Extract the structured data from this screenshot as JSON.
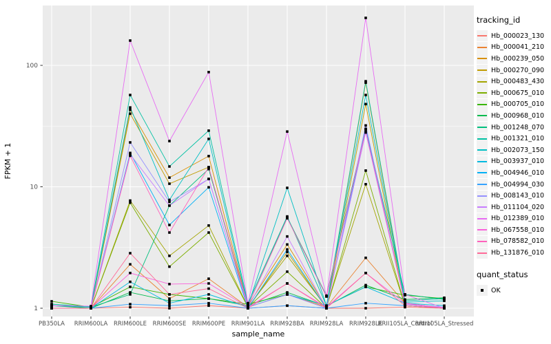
{
  "figure": {
    "xlabel": "sample_name",
    "ylabel": "FPKM + 1"
  },
  "legend": {
    "tracking_title": "tracking_id",
    "quant_title": "quant_status",
    "quant_items": [
      {
        "label": "OK",
        "marker": "black-square",
        "color": "#000000"
      }
    ]
  },
  "chart_data": {
    "type": "line",
    "title": "",
    "xlabel": "sample_name",
    "ylabel": "FPKM + 1",
    "y_scale": "log10",
    "y_ticks": [
      "1",
      "10",
      "100"
    ],
    "ylim": [
      0.86,
      300
    ],
    "grid": true,
    "legend_position": "right",
    "panel_bg": "#EBEBEB",
    "grid_color": "#FFFFFF",
    "tick_label_color": "#4D4D4D",
    "point_color": "#000000",
    "categories": [
      "PB350LA",
      "RRIM600LA",
      "RRIM600LE",
      "RRIM600SE",
      "RRIM600PE",
      "RRIM901LA",
      "RRIM928BA",
      "RRIM928LA",
      "RRIM928LE",
      "RRII105LA_Control",
      "RRII105LA_Stressed"
    ],
    "series": [
      {
        "name": "Hb_000023_130",
        "color": "#F8766D",
        "values": [
          1,
          1,
          1.02,
          1,
          1.05,
          1,
          1.05,
          1,
          1,
          1.02,
          1
        ]
      },
      {
        "name": "Hb_000041_210",
        "color": "#EA8331",
        "values": [
          1,
          1,
          2.3,
          1.2,
          1.75,
          1.02,
          1.3,
          1.02,
          2.6,
          1.1,
          1
        ]
      },
      {
        "name": "Hb_000239_050",
        "color": "#D89000",
        "values": [
          1,
          1,
          43,
          11.9,
          17.9,
          1.05,
          3.35,
          1.02,
          72,
          1.1,
          1
        ]
      },
      {
        "name": "Hb_000270_090",
        "color": "#C09B00",
        "values": [
          1,
          1,
          40,
          10.6,
          14.5,
          1,
          2.9,
          1,
          48,
          1.05,
          1
        ]
      },
      {
        "name": "Hb_000483_430",
        "color": "#A3A500",
        "values": [
          1,
          1,
          7.7,
          2.7,
          4.8,
          1.02,
          2.7,
          1.02,
          10.5,
          1.05,
          1
        ]
      },
      {
        "name": "Hb_000675_010",
        "color": "#7CAE00",
        "values": [
          1,
          1,
          7.4,
          2.2,
          4.2,
          1.02,
          2,
          1,
          13.6,
          1.05,
          1
        ]
      },
      {
        "name": "Hb_000705_010",
        "color": "#39B600",
        "values": [
          1.14,
          1.02,
          1.5,
          1.3,
          1.2,
          1.08,
          1.3,
          1.05,
          1.5,
          1.28,
          1.2
        ]
      },
      {
        "name": "Hb_000968_010",
        "color": "#00BB4E",
        "values": [
          1.05,
          1,
          1.35,
          1.15,
          1.2,
          1.05,
          1.35,
          1.04,
          1.55,
          1.18,
          1.22
        ]
      },
      {
        "name": "Hb_001248_070",
        "color": "#00BF7D",
        "values": [
          1.08,
          1.02,
          1.3,
          7,
          14,
          1.05,
          5.6,
          1.27,
          30,
          1.3,
          1.18
        ]
      },
      {
        "name": "Hb_001321_010",
        "color": "#00C1A3",
        "values": [
          1.08,
          1.03,
          57,
          14.7,
          29,
          1.1,
          5.7,
          1.05,
          74,
          1.15,
          1.2
        ]
      },
      {
        "name": "Hb_002073_150",
        "color": "#00BFC4",
        "values": [
          1.05,
          1.02,
          45,
          7.8,
          24.8,
          1.05,
          9.8,
          1.05,
          57,
          1.12,
          1.15
        ]
      },
      {
        "name": "Hb_003937_010",
        "color": "#00BAE0",
        "values": [
          1,
          1,
          1.65,
          1.1,
          1.3,
          1.02,
          1.3,
          1.05,
          1.5,
          1.1,
          1.05
        ]
      },
      {
        "name": "Hb_004946_010",
        "color": "#00B0F6",
        "values": [
          1,
          1,
          19,
          4.85,
          9.9,
          1,
          3.05,
          1,
          30,
          1.1,
          1
        ]
      },
      {
        "name": "Hb_004994_030",
        "color": "#35A2FF",
        "values": [
          1,
          1,
          1.08,
          1.05,
          1.1,
          1,
          1.05,
          1,
          1.1,
          1.05,
          1
        ]
      },
      {
        "name": "Hb_008143_010",
        "color": "#9590FF",
        "values": [
          1,
          1,
          23.2,
          7.5,
          11.6,
          1.02,
          1.3,
          1,
          32,
          1.08,
          1.02
        ]
      },
      {
        "name": "Hb_011104_020",
        "color": "#C77CFF",
        "values": [
          1,
          1,
          18.5,
          7,
          11.6,
          1.02,
          3.9,
          1,
          28,
          1.08,
          1
        ]
      },
      {
        "name": "Hb_012389_010",
        "color": "#E76BF3",
        "values": [
          1.05,
          1.04,
          160,
          23.8,
          88,
          1.1,
          28.5,
          1.25,
          246,
          1.3,
          1
        ]
      },
      {
        "name": "Hb_067558_010",
        "color": "#FA62DB",
        "values": [
          1,
          1,
          1.95,
          1.58,
          1.6,
          1.02,
          1.6,
          1.02,
          1.95,
          1.1,
          1
        ]
      },
      {
        "name": "Hb_078582_010",
        "color": "#FF62BC",
        "values": [
          1,
          1,
          18,
          4.2,
          14.5,
          1.05,
          5.5,
          1.25,
          29,
          1.1,
          1
        ]
      },
      {
        "name": "Hb_131876_010",
        "color": "#FF6A98",
        "values": [
          1,
          1,
          2.84,
          1.3,
          1.45,
          1,
          1.6,
          1,
          1.95,
          1.05,
          1
        ]
      }
    ]
  }
}
